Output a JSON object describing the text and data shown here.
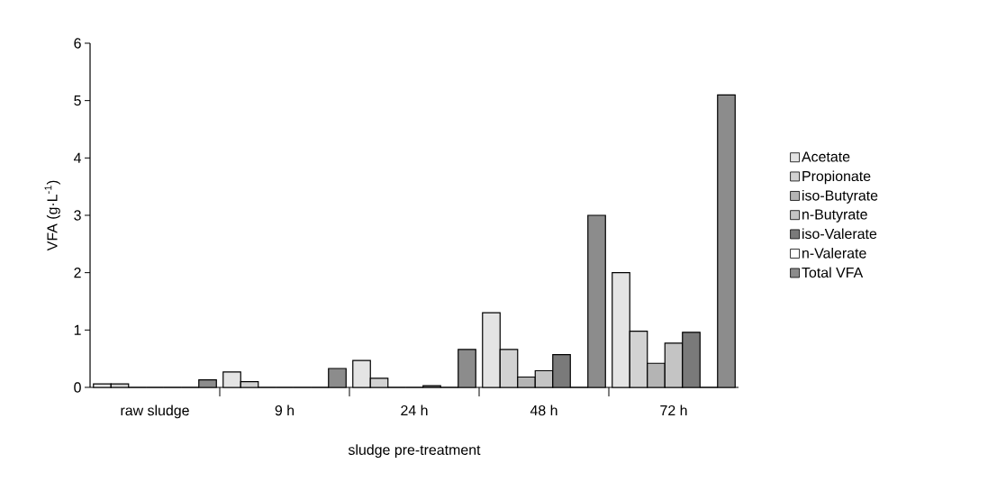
{
  "chart_data": {
    "type": "bar",
    "xlabel": "sludge pre-treatment",
    "ylabel": "VFA (g·L$^{-1}$)",
    "categories": [
      "raw sludge",
      "9 h",
      "24 h",
      "48 h",
      "72 h"
    ],
    "series": [
      {
        "name": "Acetate",
        "color": "#e4e4e4",
        "values": [
          0.06,
          0.27,
          0.47,
          1.3,
          2.0
        ]
      },
      {
        "name": "Propionate",
        "color": "#d2d2d2",
        "values": [
          0.06,
          0.1,
          0.16,
          0.66,
          0.98
        ]
      },
      {
        "name": "iso-Butyrate",
        "color": "#b4b4b4",
        "values": [
          0,
          0,
          0,
          0.18,
          0.42
        ]
      },
      {
        "name": "n-Butyrate",
        "color": "#c4c4c4",
        "values": [
          0,
          0,
          0,
          0.29,
          0.77
        ]
      },
      {
        "name": "iso-Valerate",
        "color": "#7a7a7a",
        "values": [
          0,
          0,
          0.03,
          0.57,
          0.96
        ]
      },
      {
        "name": "n-Valerate",
        "color": "#ffffff",
        "values": [
          0,
          0,
          0,
          0,
          0
        ]
      },
      {
        "name": "Total VFA",
        "color": "#8c8c8c",
        "values": [
          0.13,
          0.33,
          0.66,
          3.0,
          5.1
        ]
      }
    ],
    "ylim": [
      0,
      6
    ],
    "yticks": [
      0,
      1,
      2,
      3,
      4,
      5,
      6
    ],
    "grid": false,
    "legend": "right"
  }
}
